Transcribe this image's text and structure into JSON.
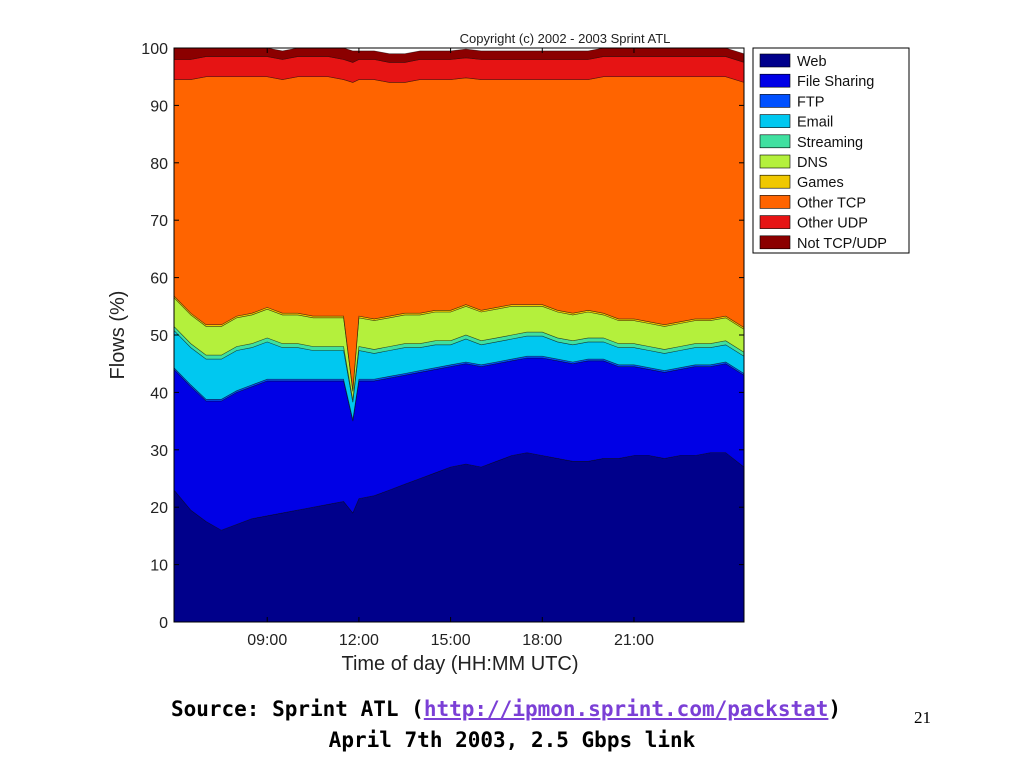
{
  "slide": {
    "source_prefix": "Source: Sprint ATL (",
    "source_link": "http://ipmon.sprint.com/packstat",
    "source_suffix": ")",
    "subtitle": "April 7th 2003, 2.5 Gbps link",
    "page_number": "21"
  },
  "chart_data": {
    "type": "area",
    "stacked": true,
    "title": "Copyright (c) 2002 - 2003 Sprint ATL",
    "xlabel": "Time of day (HH:MM UTC)",
    "ylabel": "Flows (%)",
    "ylim": [
      0,
      100
    ],
    "yticks": [
      "0",
      "10",
      "20",
      "30",
      "40",
      "50",
      "60",
      "70",
      "80",
      "90",
      "100"
    ],
    "xticks": [
      {
        "hour": 9,
        "label": "09:00"
      },
      {
        "hour": 12,
        "label": "12:00"
      },
      {
        "hour": 15,
        "label": "15:00"
      },
      {
        "hour": 18,
        "label": "18:00"
      },
      {
        "hour": 21,
        "label": "21:00"
      }
    ],
    "xlim_hours": [
      5.95,
      24.6
    ],
    "legend_position": "right, outside top",
    "x": [
      6,
      6.5,
      7,
      7.5,
      8,
      8.5,
      9,
      9.5,
      10,
      10.5,
      11,
      11.5,
      11.8,
      12,
      12.5,
      13,
      13.5,
      14,
      14.5,
      15,
      15.5,
      16,
      16.5,
      17,
      17.5,
      18,
      18.5,
      19,
      19.5,
      20,
      20.5,
      21,
      21.5,
      22,
      22.5,
      23,
      23.5,
      24,
      24.5
    ],
    "series": [
      {
        "name": "Web",
        "color": "#00008b",
        "values": [
          23,
          19.5,
          17.5,
          16,
          17,
          18,
          18.5,
          19,
          19.5,
          20,
          20.5,
          21,
          19,
          21.5,
          22,
          23,
          24,
          25,
          26,
          27,
          27.5,
          27,
          28,
          29,
          29.5,
          29,
          28.5,
          28,
          28,
          28.5,
          28.5,
          29,
          29,
          28.5,
          29,
          29,
          29.5,
          29.5,
          27
        ]
      },
      {
        "name": "File Sharing",
        "color": "#0000e6",
        "values": [
          21,
          21.5,
          21,
          22.5,
          23,
          23,
          23.5,
          23,
          22.5,
          22,
          21.5,
          21,
          16,
          20.5,
          20,
          19.5,
          19,
          18.5,
          18,
          17.5,
          17.5,
          17.5,
          17,
          16.5,
          16.5,
          17,
          17,
          17,
          17.5,
          17,
          16,
          15.5,
          15,
          15,
          15,
          15.5,
          15,
          15.5,
          16
        ]
      },
      {
        "name": "FTP",
        "color": "#0050ff",
        "values": [
          0.3,
          0.3,
          0.3,
          0.3,
          0.3,
          0.3,
          0.3,
          0.3,
          0.3,
          0.3,
          0.3,
          0.3,
          0.3,
          0.3,
          0.3,
          0.3,
          0.3,
          0.3,
          0.3,
          0.3,
          0.3,
          0.3,
          0.3,
          0.3,
          0.3,
          0.3,
          0.3,
          0.3,
          0.3,
          0.3,
          0.3,
          0.3,
          0.3,
          0.3,
          0.3,
          0.3,
          0.3,
          0.3,
          0.3
        ]
      },
      {
        "name": "Email",
        "color": "#00c8f0",
        "values": [
          6.5,
          6.5,
          7,
          7,
          7,
          6.5,
          6.5,
          5.5,
          5.5,
          5,
          5,
          5,
          3,
          5,
          4.5,
          4.5,
          4.5,
          4,
          4,
          3.5,
          4,
          3.5,
          3.5,
          3.5,
          3.5,
          3.5,
          3,
          3,
          3,
          3,
          3,
          3,
          3,
          3,
          3,
          3,
          3,
          3,
          3
        ]
      },
      {
        "name": "Streaming",
        "color": "#40e0a0",
        "values": [
          0.7,
          0.7,
          0.7,
          0.7,
          0.7,
          0.7,
          0.7,
          0.7,
          0.7,
          0.7,
          0.7,
          0.7,
          0.4,
          0.7,
          0.7,
          0.7,
          0.7,
          0.7,
          0.7,
          0.7,
          0.7,
          0.7,
          0.7,
          0.7,
          0.7,
          0.7,
          0.7,
          0.7,
          0.7,
          0.7,
          0.7,
          0.7,
          0.7,
          0.7,
          0.7,
          0.7,
          0.7,
          0.7,
          0.7
        ]
      },
      {
        "name": "DNS",
        "color": "#b4f03c",
        "values": [
          5,
          5,
          5,
          5,
          5,
          5,
          5,
          5,
          5,
          5,
          5,
          5,
          1.5,
          5,
          5,
          5,
          5,
          5,
          5,
          5,
          5,
          5,
          5,
          5,
          4.5,
          4.5,
          4.5,
          4.5,
          4.5,
          4,
          4,
          4,
          4,
          4,
          4,
          4,
          4,
          4,
          4
        ]
      },
      {
        "name": "Games",
        "color": "#f0c800",
        "values": [
          0.3,
          0.3,
          0.3,
          0.3,
          0.3,
          0.3,
          0.3,
          0.3,
          0.3,
          0.3,
          0.3,
          0.3,
          0.3,
          0.3,
          0.3,
          0.3,
          0.3,
          0.3,
          0.3,
          0.3,
          0.3,
          0.3,
          0.3,
          0.3,
          0.3,
          0.3,
          0.3,
          0.3,
          0.3,
          0.3,
          0.3,
          0.3,
          0.3,
          0.3,
          0.3,
          0.3,
          0.3,
          0.3,
          0.3
        ]
      },
      {
        "name": "Other TCP",
        "color": "#ff6400",
        "values": [
          37.7,
          40.7,
          43.2,
          43.2,
          41.7,
          41.2,
          40.2,
          40.7,
          41.2,
          41.7,
          41.7,
          41.2,
          53.5,
          41.2,
          41.7,
          40.7,
          40.2,
          40.7,
          40.2,
          40.2,
          39.5,
          40.2,
          39.7,
          39.2,
          39.2,
          39.2,
          40.2,
          40.7,
          40.2,
          41.2,
          42.2,
          42.2,
          42.7,
          43.2,
          42.7,
          42.2,
          42.2,
          41.7,
          42.7
        ]
      },
      {
        "name": "Other UDP",
        "color": "#e61414",
        "values": [
          3.5,
          3.5,
          3.5,
          3.5,
          3.5,
          3.5,
          3.5,
          3.5,
          3.5,
          3.5,
          3.5,
          3.5,
          3.5,
          3.5,
          3.5,
          3.5,
          3.5,
          3.5,
          3.5,
          3.5,
          3.5,
          3.5,
          3.5,
          3.5,
          3.5,
          3.5,
          3.5,
          3.5,
          3.5,
          3.5,
          3.5,
          3.5,
          3.5,
          3.5,
          3.5,
          3.5,
          3.5,
          3.5,
          3.5
        ]
      },
      {
        "name": "Not TCP/UDP",
        "color": "#8b0000",
        "values": [
          2,
          2,
          1.5,
          2,
          1.5,
          1.5,
          1.5,
          1.5,
          1.5,
          1.5,
          1.5,
          2,
          2,
          1.5,
          1.5,
          1.5,
          1.5,
          1.5,
          1.5,
          1.5,
          1.5,
          1.5,
          1.5,
          1.5,
          1.5,
          1.5,
          1.5,
          1.5,
          1.5,
          1.5,
          1.5,
          1.5,
          1.5,
          1.5,
          1.5,
          1.5,
          1.5,
          1.5,
          1.5
        ]
      }
    ]
  }
}
